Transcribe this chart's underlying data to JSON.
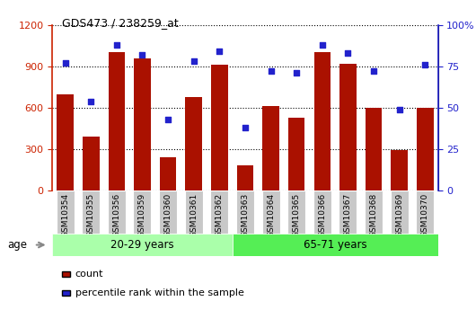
{
  "title": "GDS473 / 238259_at",
  "categories": [
    "GSM10354",
    "GSM10355",
    "GSM10356",
    "GSM10359",
    "GSM10360",
    "GSM10361",
    "GSM10362",
    "GSM10363",
    "GSM10364",
    "GSM10365",
    "GSM10366",
    "GSM10367",
    "GSM10368",
    "GSM10369",
    "GSM10370"
  ],
  "counts": [
    700,
    390,
    1000,
    960,
    240,
    680,
    910,
    185,
    610,
    530,
    1000,
    920,
    600,
    295,
    600
  ],
  "percentiles": [
    77,
    54,
    88,
    82,
    43,
    78,
    84,
    38,
    72,
    71,
    88,
    83,
    72,
    49,
    76
  ],
  "group1_label": "20-29 years",
  "group2_label": "65-71 years",
  "group1_count": 7,
  "group2_count": 8,
  "bar_color": "#aa1100",
  "dot_color": "#2222cc",
  "left_axis_color": "#cc2200",
  "right_axis_color": "#2222cc",
  "ylim_left": [
    0,
    1200
  ],
  "ylim_right": [
    0,
    100
  ],
  "left_ticks": [
    0,
    300,
    600,
    900,
    1200
  ],
  "right_ticks": [
    0,
    25,
    50,
    75,
    100
  ],
  "group1_bg": "#aaffaa",
  "group2_bg": "#55ee55",
  "xticklabel_bg": "#c8c8c8",
  "legend_count_label": "count",
  "legend_pct_label": "percentile rank within the sample",
  "age_label": "age"
}
